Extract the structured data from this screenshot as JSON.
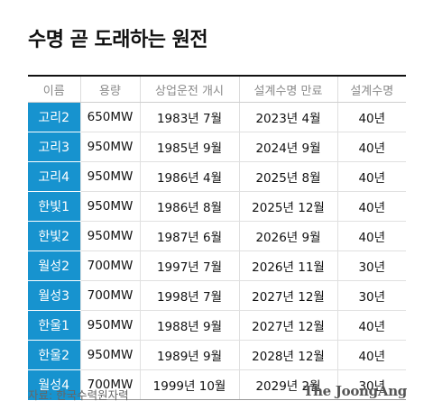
{
  "title": "수명 곧 도래하는 원전",
  "table": {
    "headers": [
      "이름",
      "용량",
      "상업운전 개시",
      "설계수명 만료",
      "설계수명"
    ],
    "rows": [
      [
        "고리2",
        "650MW",
        "1983년 7월",
        "2023년 4월",
        "40년"
      ],
      [
        "고리3",
        "950MW",
        "1985년 9월",
        "2024년 9월",
        "40년"
      ],
      [
        "고리4",
        "950MW",
        "1986년 4월",
        "2025년 8월",
        "40년"
      ],
      [
        "한빛1",
        "950MW",
        "1986년 8월",
        "2025년 12월",
        "40년"
      ],
      [
        "한빛2",
        "950MW",
        "1987년 6월",
        "2026년 9월",
        "40년"
      ],
      [
        "월성2",
        "700MW",
        "1997년 7월",
        "2026년 11월",
        "30년"
      ],
      [
        "월성3",
        "700MW",
        "1998년 7월",
        "2027년 12월",
        "30년"
      ],
      [
        "한울1",
        "950MW",
        "1988년 9월",
        "2027년 12월",
        "40년"
      ],
      [
        "한울2",
        "950MW",
        "1989년 9월",
        "2028년 12월",
        "40년"
      ],
      [
        "월성4",
        "700MW",
        "1999년 10월",
        "2029년 2월",
        "30년"
      ]
    ]
  },
  "source": "자료: 한국수력원자력",
  "logo": "The JoongAng",
  "colors": {
    "accent": "#1793cf",
    "title": "#111111",
    "header_text": "#8a8a8a"
  }
}
